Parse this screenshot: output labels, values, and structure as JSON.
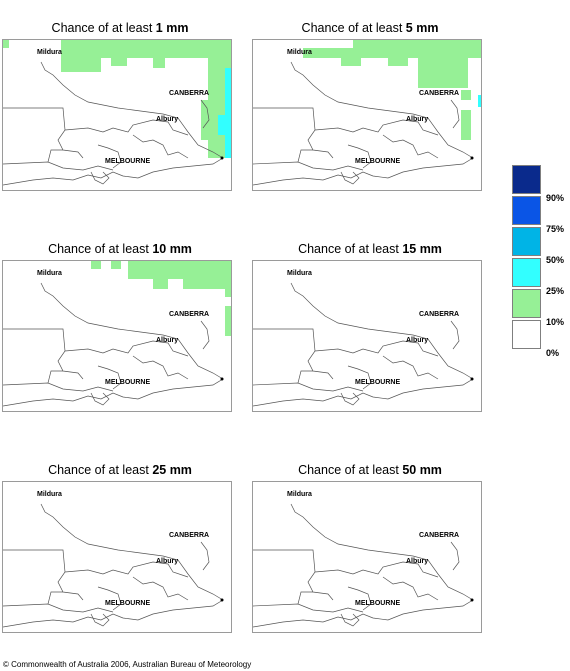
{
  "panels": [
    {
      "title_prefix": "Chance of at least ",
      "amount": "1 mm",
      "cities": {
        "mildura": "Mildura",
        "canberra": "CANBERRA",
        "albury": "Albury",
        "melbourne": "MELBOURNE"
      }
    },
    {
      "title_prefix": "Chance of at least ",
      "amount": "5 mm",
      "cities": {
        "mildura": "Mildura",
        "canberra": "CANBERRA",
        "albury": "Albury",
        "melbourne": "MELBOURNE"
      }
    },
    {
      "title_prefix": "Chance of at least ",
      "amount": "10 mm",
      "cities": {
        "mildura": "Mildura",
        "canberra": "CANBERRA",
        "albury": "Albury",
        "melbourne": "MELBOURNE"
      }
    },
    {
      "title_prefix": "Chance of at least ",
      "amount": "15 mm",
      "cities": {
        "mildura": "Mildura",
        "canberra": "CANBERRA",
        "albury": "Albury",
        "melbourne": "MELBOURNE"
      }
    },
    {
      "title_prefix": "Chance of at least ",
      "amount": "25 mm",
      "cities": {
        "mildura": "Mildura",
        "canberra": "CANBERRA",
        "albury": "Albury",
        "melbourne": "MELBOURNE"
      }
    },
    {
      "title_prefix": "Chance of at least ",
      "amount": "50 mm",
      "cities": {
        "mildura": "Mildura",
        "canberra": "CANBERRA",
        "albury": "Albury",
        "melbourne": "MELBOURNE"
      }
    }
  ],
  "legend": {
    "labels": [
      "90%",
      "75%",
      "50%",
      "25%",
      "10%",
      "0%"
    ],
    "colors": [
      "#0a2a8c",
      "#0a55e6",
      "#00b4e6",
      "#32ffff",
      "#96f096",
      "#ffffff"
    ]
  },
  "copyright": "© Commonwealth of Australia 2006, Australian Bureau of Meteorology"
}
